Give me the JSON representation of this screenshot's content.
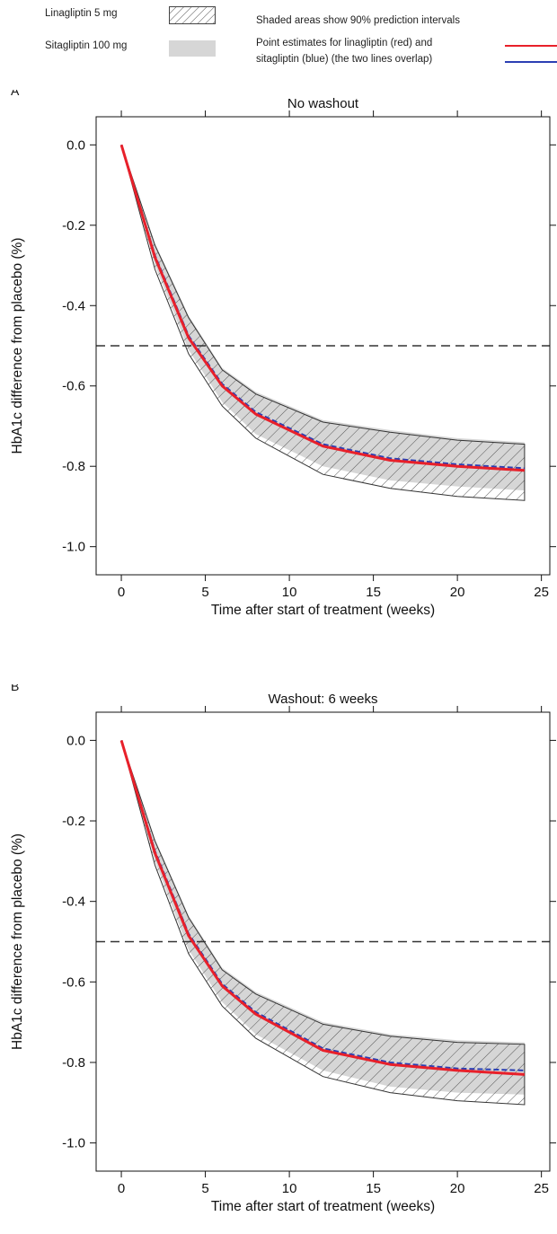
{
  "legend": {
    "lina_label": "Linagliptin 5 mg",
    "sita_label": "Sitagliptin 100 mg",
    "note_text": "Shaded areas show 90% prediction intervals",
    "point_line1": "Point estimates for linagliptin (red) and",
    "point_line2": "sitagliptin (blue) (the two lines overlap)",
    "colors": {
      "lina_line": "#e8202a",
      "sita_line": "#2b3fb3",
      "sita_fill": "#d6d6d6",
      "hatch": "#555555"
    }
  },
  "chart_data": [
    {
      "type": "line",
      "panel_label": "A",
      "title": "No washout",
      "xlabel": "Time after start of treatment (weeks)",
      "ylabel": "HbA1c difference from placebo (%)",
      "xlim": [
        -1.5,
        25.5
      ],
      "ylim": [
        -1.07,
        0.07
      ],
      "xticks": [
        0,
        5,
        10,
        15,
        20,
        25
      ],
      "yticks": [
        0.0,
        -0.2,
        -0.4,
        -0.6,
        -0.8,
        -1.0
      ],
      "ytick_labels": [
        "0.0",
        "-0.2",
        "-0.4",
        "-0.6",
        "-0.8",
        "-1.0"
      ],
      "reference_line": -0.5,
      "x": [
        0,
        2,
        4,
        6,
        8,
        12,
        16,
        20,
        24
      ],
      "series": [
        {
          "name": "Linagliptin 5 mg",
          "values": [
            0,
            -0.28,
            -0.48,
            -0.6,
            -0.67,
            -0.75,
            -0.785,
            -0.8,
            -0.81
          ],
          "pi_lower": [
            0,
            -0.31,
            -0.52,
            -0.65,
            -0.73,
            -0.82,
            -0.855,
            -0.875,
            -0.885
          ],
          "pi_upper": [
            0,
            -0.25,
            -0.43,
            -0.56,
            -0.62,
            -0.69,
            -0.715,
            -0.735,
            -0.745
          ]
        },
        {
          "name": "Sitagliptin 100 mg",
          "values": [
            0,
            -0.275,
            -0.475,
            -0.595,
            -0.665,
            -0.745,
            -0.78,
            -0.795,
            -0.805
          ],
          "pi_lower": [
            0,
            -0.3,
            -0.51,
            -0.64,
            -0.72,
            -0.8,
            -0.835,
            -0.85,
            -0.86
          ],
          "pi_upper": [
            0,
            -0.245,
            -0.425,
            -0.555,
            -0.615,
            -0.685,
            -0.71,
            -0.73,
            -0.74
          ]
        }
      ]
    },
    {
      "type": "line",
      "panel_label": "B",
      "title": "Washout: 6 weeks",
      "xlabel": "Time after start of treatment (weeks)",
      "ylabel": "HbA1c difference from placebo (%)",
      "xlim": [
        -1.5,
        25.5
      ],
      "ylim": [
        -1.07,
        0.07
      ],
      "xticks": [
        0,
        5,
        10,
        15,
        20,
        25
      ],
      "yticks": [
        0.0,
        -0.2,
        -0.4,
        -0.6,
        -0.8,
        -1.0
      ],
      "ytick_labels": [
        "0.0",
        "-0.2",
        "-0.4",
        "-0.6",
        "-0.8",
        "-1.0"
      ],
      "reference_line": -0.5,
      "x": [
        0,
        2,
        4,
        6,
        8,
        12,
        16,
        20,
        24
      ],
      "series": [
        {
          "name": "Linagliptin 5 mg",
          "values": [
            0,
            -0.28,
            -0.485,
            -0.61,
            -0.68,
            -0.77,
            -0.805,
            -0.82,
            -0.83
          ],
          "pi_lower": [
            0,
            -0.31,
            -0.53,
            -0.66,
            -0.74,
            -0.835,
            -0.875,
            -0.895,
            -0.905
          ],
          "pi_upper": [
            0,
            -0.25,
            -0.44,
            -0.57,
            -0.63,
            -0.705,
            -0.735,
            -0.75,
            -0.755
          ]
        },
        {
          "name": "Sitagliptin 100 mg",
          "values": [
            0,
            -0.275,
            -0.48,
            -0.605,
            -0.675,
            -0.765,
            -0.8,
            -0.815,
            -0.82
          ],
          "pi_lower": [
            0,
            -0.3,
            -0.52,
            -0.65,
            -0.73,
            -0.82,
            -0.86,
            -0.875,
            -0.88
          ],
          "pi_upper": [
            0,
            -0.245,
            -0.435,
            -0.565,
            -0.625,
            -0.7,
            -0.73,
            -0.745,
            -0.75
          ]
        }
      ]
    }
  ]
}
